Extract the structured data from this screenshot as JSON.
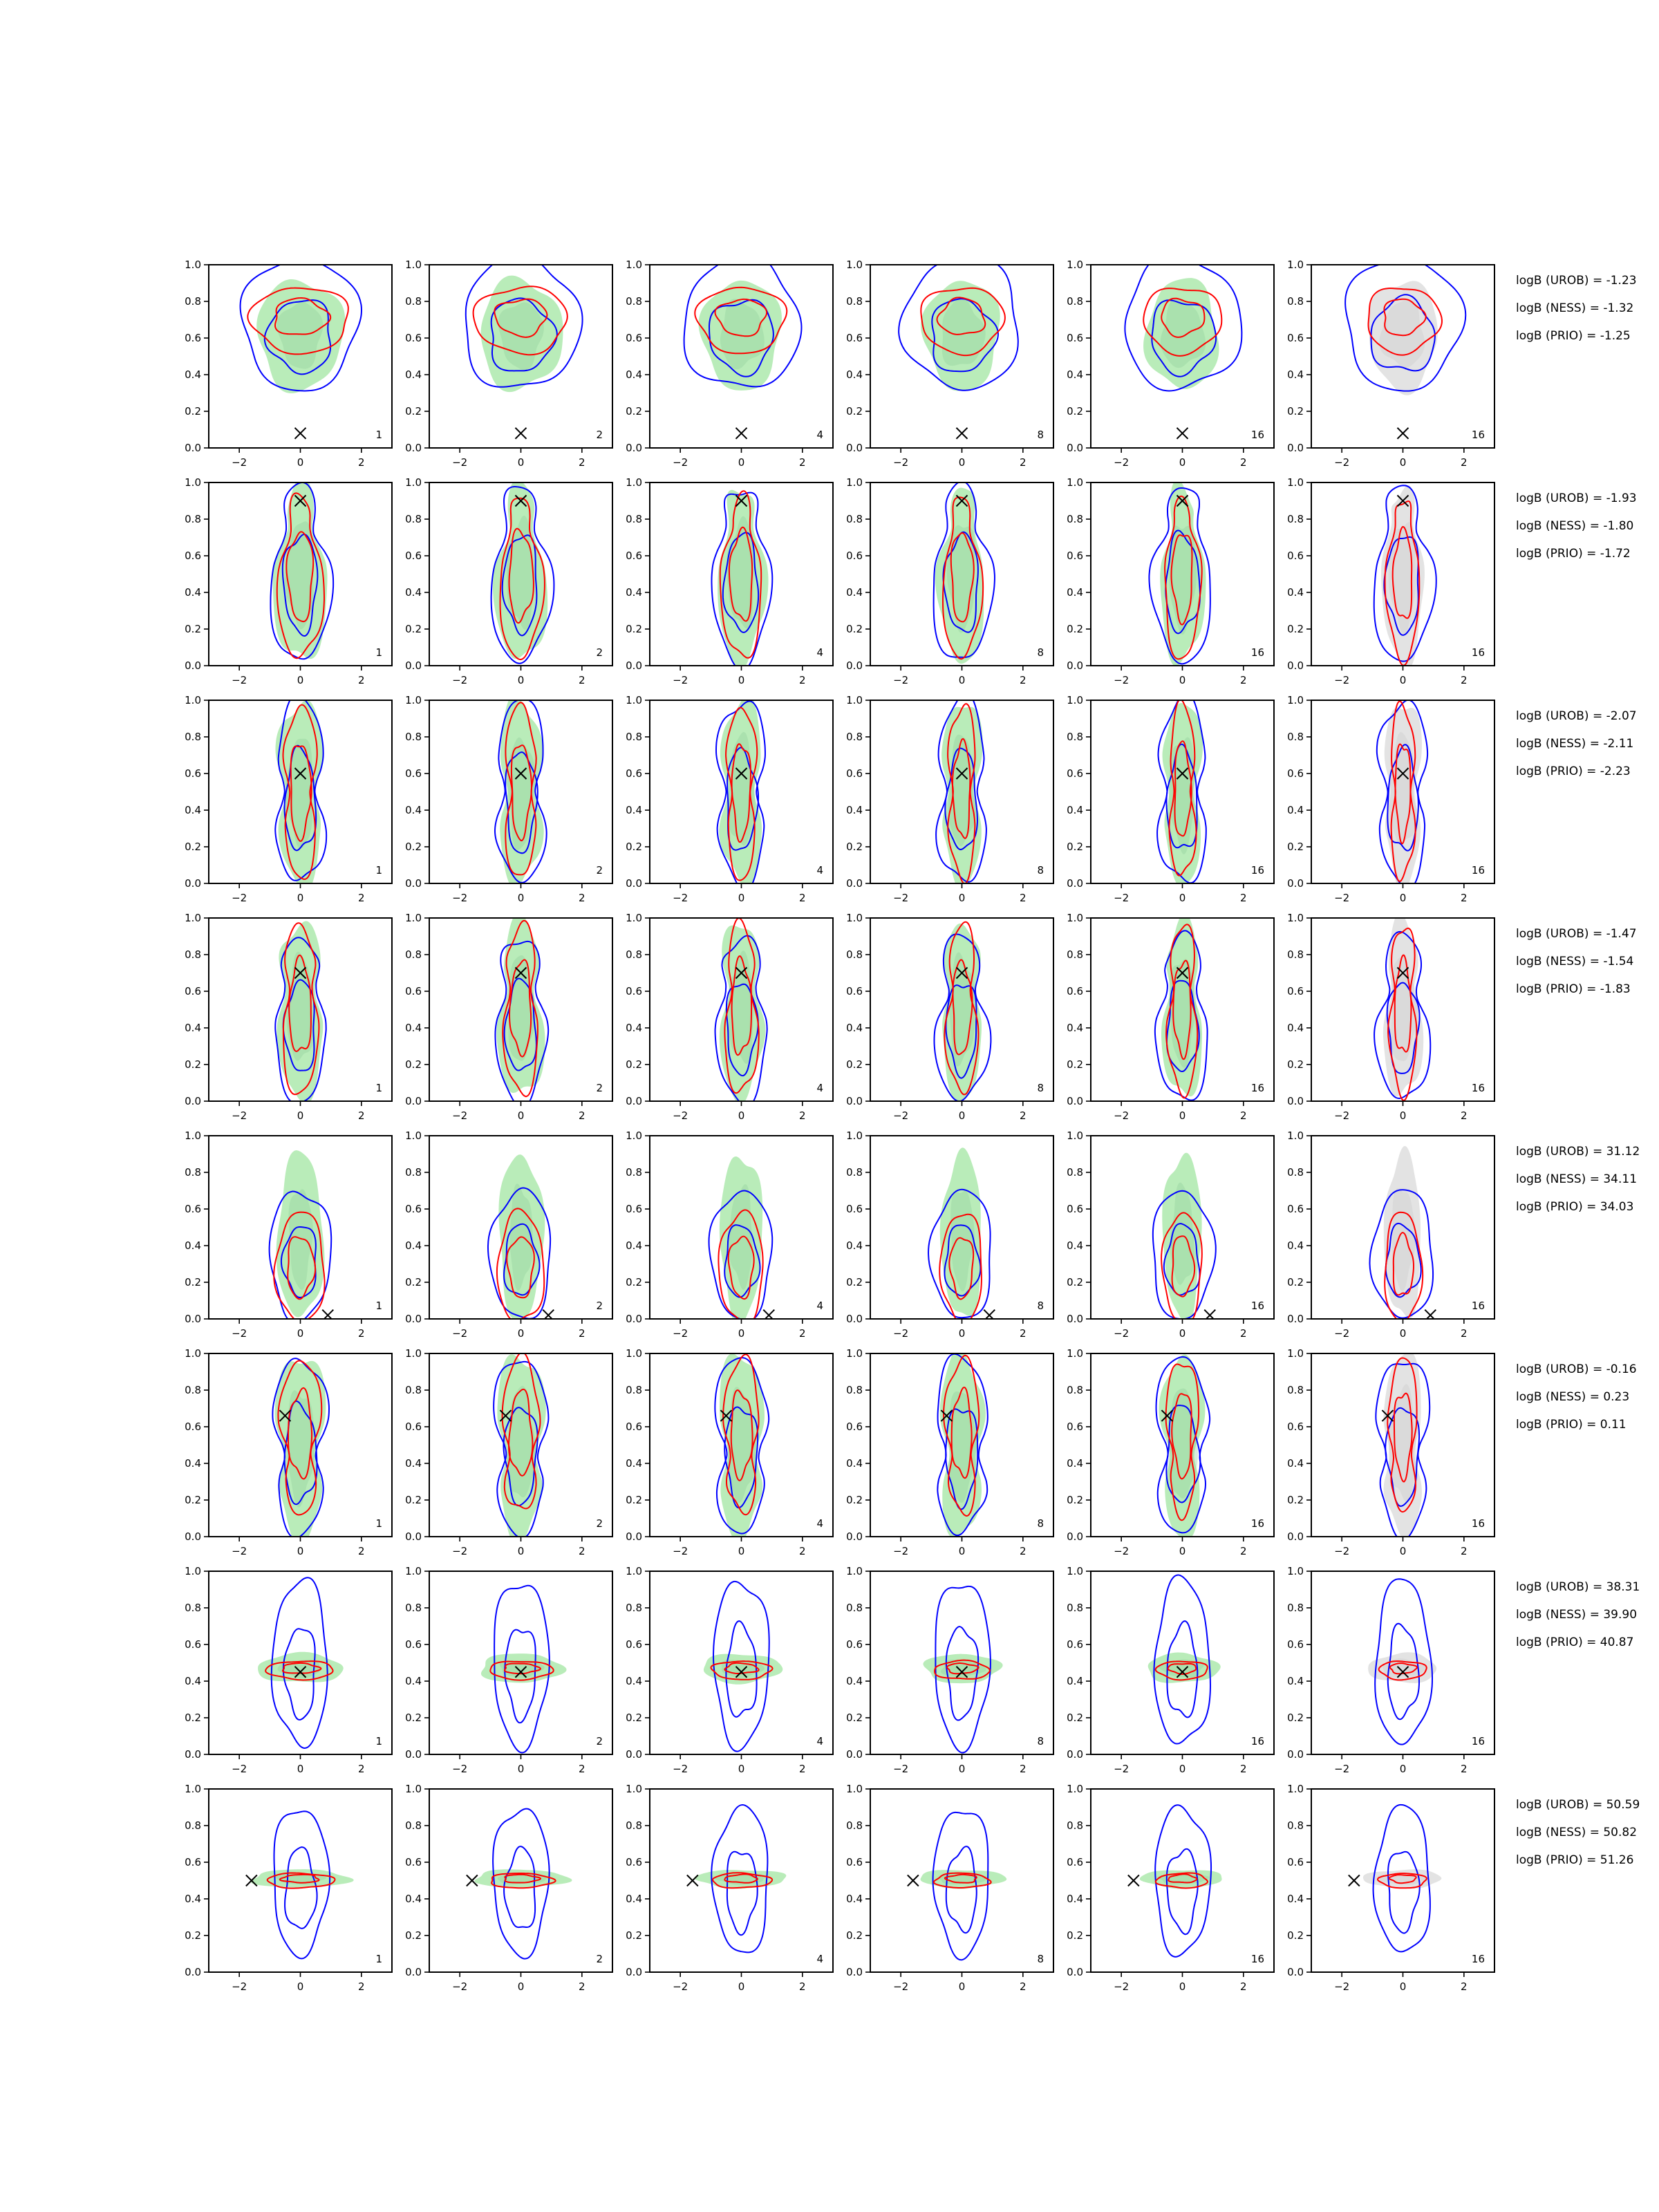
{
  "chart_data": {
    "type": "contour-grid",
    "rows": 8,
    "cols": 6,
    "xlim": [
      -3,
      3
    ],
    "ylim": [
      0,
      1
    ],
    "xticks": [
      "−2",
      "0",
      "2"
    ],
    "yticks": [
      "0.0",
      "0.2",
      "0.4",
      "0.6",
      "0.8",
      "1.0"
    ],
    "panel_counts": [
      "1",
      "2",
      "4",
      "8",
      "16",
      "16"
    ],
    "colors": {
      "blue": "#0000ff",
      "red": "#ff0000",
      "green_fill": "#b9ecb9",
      "green_fill_dark": "#8fcf9a",
      "gray_fill": "#e3e3e3",
      "gray_fill_dark": "#c9c9c9",
      "marker": "#000000"
    },
    "marker": "x",
    "rows_data": [
      {
        "true_point": [
          0.0,
          0.08
        ],
        "logB": [
          "logB (UROB) = -1.23",
          "logB (NESS) = -1.32",
          "logB (PRIO) = -1.25"
        ]
      },
      {
        "true_point": [
          0.0,
          0.9
        ],
        "logB": [
          "logB (UROB) = -1.93",
          "logB (NESS) = -1.80",
          "logB (PRIO) = -1.72"
        ]
      },
      {
        "true_point": [
          0.0,
          0.6
        ],
        "logB": [
          "logB (UROB) = -2.07",
          "logB (NESS) = -2.11",
          "logB (PRIO) = -2.23"
        ]
      },
      {
        "true_point": [
          0.0,
          0.7
        ],
        "logB": [
          "logB (UROB) = -1.47",
          "logB (NESS) = -1.54",
          "logB (PRIO) = -1.83"
        ]
      },
      {
        "true_point": [
          0.9,
          0.02
        ],
        "logB": [
          "logB (UROB) = 31.12",
          "logB (NESS) = 34.11",
          "logB (PRIO) = 34.03"
        ]
      },
      {
        "true_point": [
          -0.5,
          0.66
        ],
        "logB": [
          "logB (UROB) = -0.16",
          "logB (NESS) = 0.23",
          "logB (PRIO) = 0.11"
        ]
      },
      {
        "true_point": [
          0.0,
          0.45
        ],
        "logB": [
          "logB (UROB) = 38.31",
          "logB (NESS) = 39.90",
          "logB (PRIO) = 40.87"
        ]
      },
      {
        "true_point": [
          -1.6,
          0.5
        ],
        "logB": [
          "logB (UROB) = 50.59",
          "logB (NESS) = 50.82",
          "logB (PRIO) = 51.26"
        ]
      }
    ]
  }
}
